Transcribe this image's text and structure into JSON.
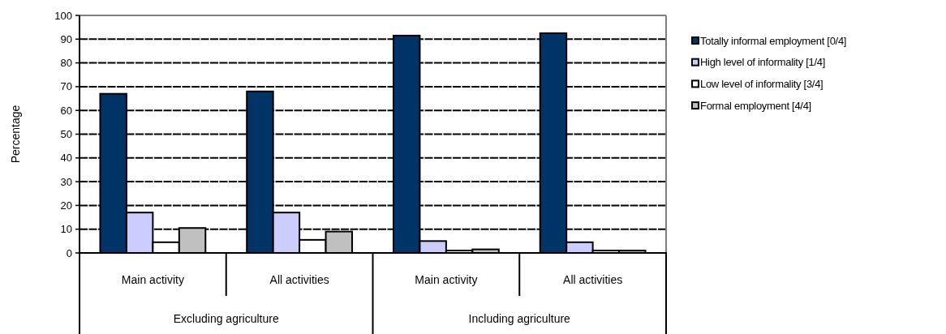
{
  "chart_data": {
    "type": "bar",
    "ylabel": "Percentage",
    "categories": [
      "Main activity",
      "All activities",
      "Main activity",
      "All activities"
    ],
    "annotations": [
      "Excluding agriculture",
      "Including agriculture"
    ],
    "series": [
      {
        "name": "Totally informal employment [0/4]",
        "color": "#003366",
        "values": [
          67,
          68,
          91.5,
          92.5
        ]
      },
      {
        "name": "High level of informality [1/4]",
        "color": "#ccccff",
        "values": [
          17,
          17,
          5,
          4.5
        ]
      },
      {
        "name": "Low level of informality [3/4]",
        "color": "#ffffff",
        "values": [
          4.5,
          5.5,
          1,
          1
        ]
      },
      {
        "name": "Formal employment [4/4]",
        "color": "#c0c0c0",
        "values": [
          10.5,
          9,
          1.5,
          1
        ]
      }
    ],
    "ylim": [
      0,
      100
    ],
    "yticks": [
      0,
      10,
      20,
      30,
      40,
      50,
      60,
      70,
      80,
      90,
      100
    ],
    "grid": "y",
    "legend": "right"
  }
}
